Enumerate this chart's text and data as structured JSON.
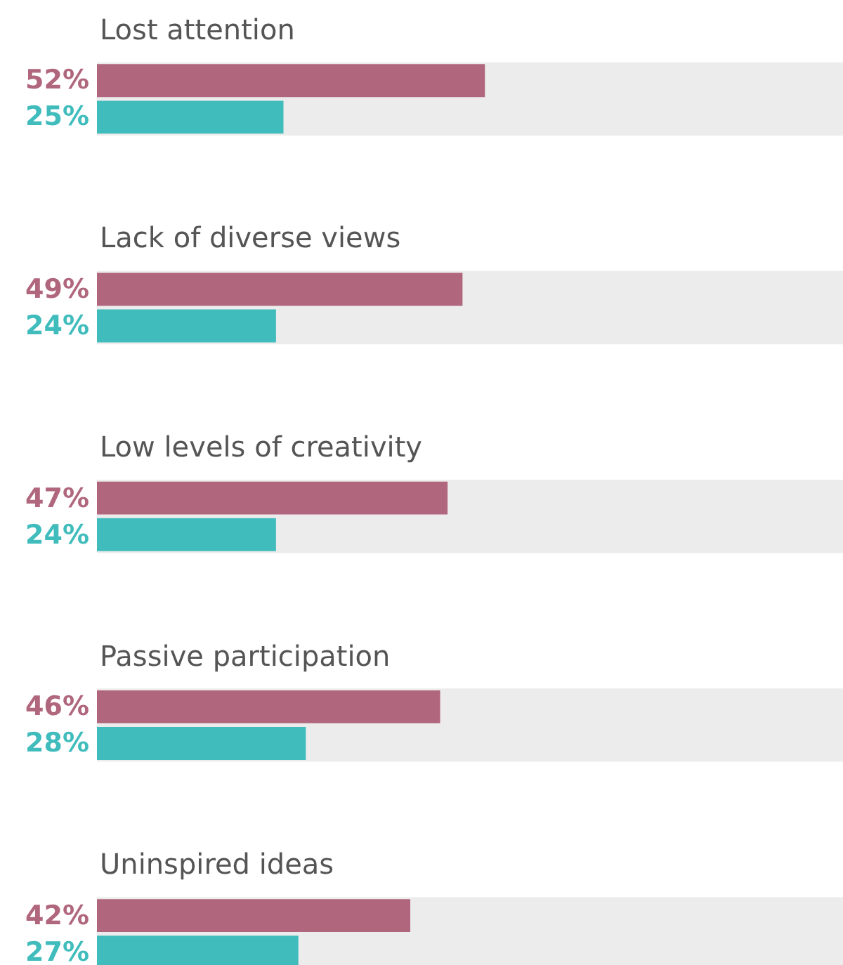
{
  "chart_data": {
    "type": "bar",
    "orientation": "horizontal",
    "categories": [
      "Lost attention",
      "Lack of diverse views",
      "Low levels of creativity",
      "Passive participation",
      "Uninspired ideas"
    ],
    "series": [
      {
        "color": "#ececec",
        "values": [
          100,
          100,
          100,
          100,
          100
        ]
      },
      {
        "color": "#b0667c",
        "values": [
          52,
          49,
          47,
          46,
          42
        ],
        "value_labels": [
          "52%",
          "49%",
          "47%",
          "46%",
          "42%"
        ]
      },
      {
        "color": "#40bcbc",
        "values": [
          25,
          24,
          24,
          28,
          27
        ],
        "value_labels": [
          "25%",
          "24%",
          "24%",
          "28%",
          "27%"
        ]
      }
    ],
    "tick_labels": false
  }
}
